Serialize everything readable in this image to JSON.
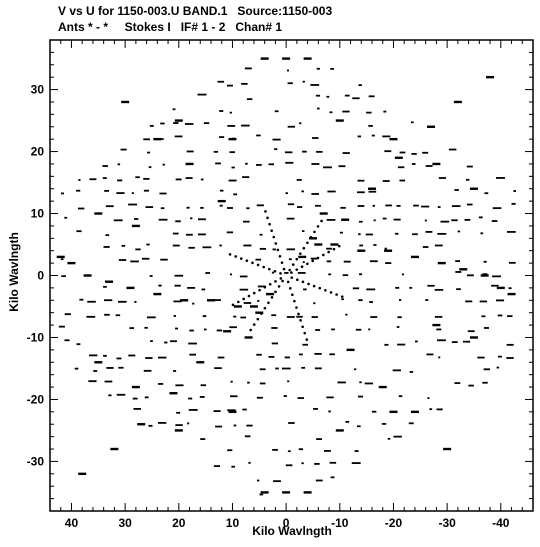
{
  "header": {
    "title_line1": "V vs U for 1150-003.U BAND.1   Source:1150-003",
    "title_line2": "Ants * - *     Stokes I   IF# 1 - 2   Chan# 1"
  },
  "chart_data": {
    "type": "scatter",
    "title": "V vs U for 1150-003.U BAND.1   Source:1150-003",
    "subtitle": "Ants * - *     Stokes I   IF# 1 - 2   Chan# 1",
    "xlabel": "Kilo Wavlngth",
    "ylabel": "Kilo Wavlngth",
    "x_axis_reversed": true,
    "xlim": [
      44,
      -46
    ],
    "ylim": [
      -38,
      38
    ],
    "x_ticks": [
      40,
      30,
      20,
      10,
      0,
      -10,
      -20,
      -30,
      -40
    ],
    "x_tick_labels": [
      "40",
      "30",
      "20",
      "10",
      "0",
      "-10",
      "-20",
      "-30",
      "-40"
    ],
    "y_ticks": [
      30,
      20,
      10,
      0,
      -10,
      -20,
      -30
    ],
    "y_tick_labels": [
      "30",
      "20",
      "10",
      "0",
      "-10",
      "-20",
      "-30"
    ],
    "grid": false,
    "marker_color": "#000000",
    "series": [
      {
        "values_note": "u,v sample pairs (kilo-wavelength) approximating the visible uv-coverage tracks",
        "points": [
          [
            42,
            3
          ],
          [
            40,
            2
          ],
          [
            37,
            0
          ],
          [
            33,
            -1
          ],
          [
            29,
            -2
          ],
          [
            24,
            -3
          ],
          [
            19,
            -4
          ],
          [
            14,
            -4
          ],
          [
            9,
            -5
          ],
          [
            -42,
            -3
          ],
          [
            -40,
            -2
          ],
          [
            -37,
            0
          ],
          [
            -33,
            1
          ],
          [
            -29,
            2
          ],
          [
            -24,
            3
          ],
          [
            -19,
            4
          ],
          [
            -14,
            4
          ],
          [
            -9,
            5
          ],
          [
            -38,
            32
          ],
          [
            -32,
            28
          ],
          [
            -27,
            24
          ],
          [
            -21,
            19
          ],
          [
            -16,
            14
          ],
          [
            -11,
            9
          ],
          [
            -6,
            5
          ],
          [
            38,
            -32
          ],
          [
            32,
            -28
          ],
          [
            27,
            -24
          ],
          [
            21,
            -19
          ],
          [
            16,
            -14
          ],
          [
            11,
            -9
          ],
          [
            6,
            -5
          ],
          [
            4,
            35
          ],
          [
            0,
            35
          ],
          [
            -4,
            35
          ],
          [
            4,
            -35
          ],
          [
            0,
            -35
          ],
          [
            -4,
            -35
          ],
          [
            -7,
            10
          ],
          [
            -5,
            6
          ],
          [
            -3,
            3
          ],
          [
            7,
            -10
          ],
          [
            5,
            -6
          ],
          [
            3,
            -3
          ],
          [
            30,
            28
          ],
          [
            24,
            22
          ],
          [
            18,
            18
          ],
          [
            12,
            12
          ],
          [
            -30,
            -28
          ],
          [
            -24,
            -22
          ],
          [
            -18,
            -18
          ],
          [
            -12,
            -12
          ],
          [
            20,
            25
          ],
          [
            10,
            22
          ],
          [
            -10,
            25
          ],
          [
            -20,
            22
          ],
          [
            20,
            -25
          ],
          [
            10,
            -22
          ],
          [
            -10,
            -25
          ],
          [
            -20,
            -22
          ],
          [
            35,
            10
          ],
          [
            28,
            8
          ],
          [
            -35,
            -10
          ],
          [
            -28,
            -8
          ],
          [
            35,
            -14
          ],
          [
            28,
            -18
          ],
          [
            -35,
            14
          ],
          [
            -28,
            18
          ]
        ]
      }
    ]
  }
}
